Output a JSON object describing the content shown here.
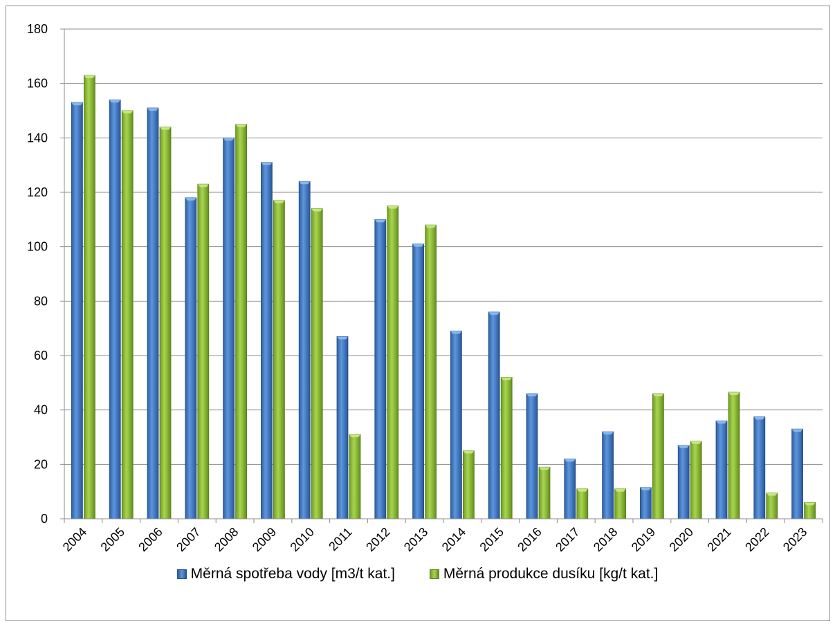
{
  "chart_data": {
    "type": "bar",
    "categories": [
      "2004",
      "2005",
      "2006",
      "2007",
      "2008",
      "2009",
      "2010",
      "2011",
      "2012",
      "2013",
      "2014",
      "2015",
      "2016",
      "2017",
      "2018",
      "2019",
      "2020",
      "2021",
      "2022",
      "2023"
    ],
    "series": [
      {
        "name": "Měrná spotřeba vody [m3/t kat.]",
        "color": "#4a82cc",
        "values": [
          153,
          154,
          151,
          118,
          140,
          131,
          124,
          67,
          110,
          101,
          69,
          76,
          46,
          22,
          32,
          11.5,
          27,
          36,
          37.5,
          33
        ]
      },
      {
        "name": "Měrná produkce dusíku [kg/t kat.]",
        "color": "#92c13c",
        "values": [
          163,
          150,
          144,
          123,
          145,
          117,
          114,
          31,
          115,
          108,
          25,
          52,
          19,
          11,
          11,
          46,
          28.5,
          46.5,
          9.5,
          6
        ]
      }
    ],
    "yticks": [
      "0",
      "20",
      "40",
      "60",
      "80",
      "100",
      "120",
      "140",
      "160",
      "180"
    ],
    "ylim": [
      0,
      180
    ],
    "grid": true,
    "legend_position": "bottom"
  }
}
